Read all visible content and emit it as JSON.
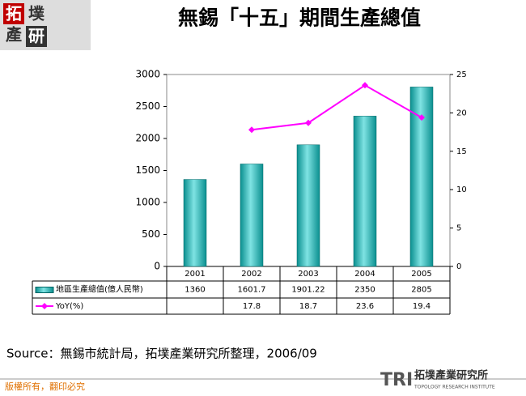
{
  "logo": {
    "chars": [
      "拓",
      "墣",
      "產",
      "研"
    ]
  },
  "chart_data": {
    "type": "bar-line",
    "title": "無錫「十五」期間生產總值",
    "categories": [
      "2001",
      "2002",
      "2003",
      "2004",
      "2005"
    ],
    "series": [
      {
        "name": "地區生產總值(億人民幣)",
        "type": "bar",
        "color": "#17b3b3",
        "values": [
          1360,
          1601.7,
          1901.22,
          2350,
          2805
        ]
      },
      {
        "name": "YoY(%)",
        "type": "line",
        "axis": "y2",
        "color": "#ff00ff",
        "values": [
          null,
          17.8,
          18.7,
          23.6,
          19.4
        ]
      }
    ],
    "ylim": [
      0,
      3000
    ],
    "yticks": [
      0,
      500,
      1000,
      1500,
      2000,
      2500,
      3000
    ],
    "y2lim": [
      0,
      25
    ],
    "y2ticks": [
      0,
      5,
      10,
      15,
      20,
      25
    ],
    "data_table": true
  },
  "source": "Source：無錫市統計局，拓墣產業研究所整理，2006/09",
  "footer": {
    "copyright": "版權所有，翻印必究",
    "brand": "TRI",
    "org": "拓墣產業研究所",
    "org_en": "TOPOLOGY RESEARCH INSTITUTE"
  }
}
